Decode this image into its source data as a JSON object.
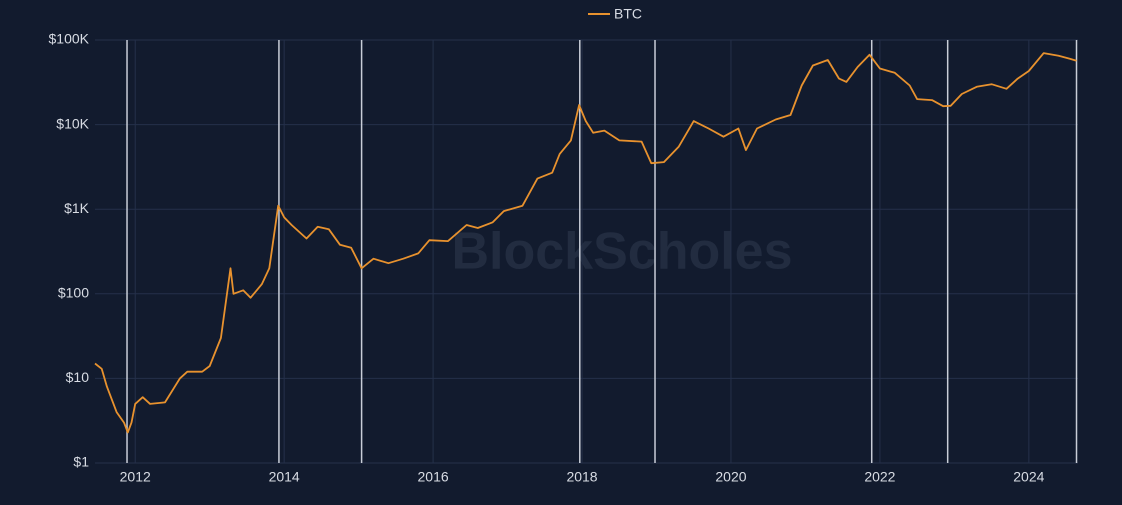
{
  "chart_data": {
    "type": "line",
    "watermark": "BlockScholes",
    "log_scale": true,
    "grid": true,
    "legend": "top",
    "x": [
      2011.46,
      2011.55,
      2011.62,
      2011.75,
      2011.85,
      2011.9,
      2011.95,
      2012.0,
      2012.1,
      2012.2,
      2012.4,
      2012.6,
      2012.7,
      2012.9,
      2013.0,
      2013.15,
      2013.28,
      2013.32,
      2013.45,
      2013.55,
      2013.7,
      2013.8,
      2013.92,
      2014.0,
      2014.1,
      2014.3,
      2014.45,
      2014.6,
      2014.75,
      2014.9,
      2015.04,
      2015.2,
      2015.4,
      2015.6,
      2015.8,
      2015.95,
      2016.2,
      2016.45,
      2016.6,
      2016.8,
      2016.95,
      2017.2,
      2017.4,
      2017.6,
      2017.7,
      2017.85,
      2017.96,
      2018.05,
      2018.15,
      2018.3,
      2018.5,
      2018.8,
      2018.93,
      2019.1,
      2019.3,
      2019.5,
      2019.7,
      2019.9,
      2020.1,
      2020.2,
      2020.35,
      2020.6,
      2020.8,
      2020.95,
      2021.1,
      2021.3,
      2021.45,
      2021.55,
      2021.7,
      2021.86,
      2022.0,
      2022.2,
      2022.4,
      2022.5,
      2022.7,
      2022.85,
      2022.95,
      2023.1,
      2023.3,
      2023.5,
      2023.7,
      2023.85,
      2024.0,
      2024.2,
      2024.4,
      2024.55,
      2024.64
    ],
    "series": [
      {
        "name": "BTC",
        "color": "#e8922e",
        "values": [
          15,
          13,
          8,
          4,
          3,
          2.3,
          3,
          5,
          6,
          5,
          5.2,
          10,
          12,
          12,
          14,
          30,
          200,
          100,
          110,
          90,
          130,
          200,
          1100,
          800,
          650,
          450,
          620,
          580,
          380,
          350,
          200,
          260,
          230,
          260,
          300,
          430,
          420,
          650,
          600,
          700,
          950,
          1100,
          2300,
          2700,
          4500,
          6500,
          17000,
          11000,
          8000,
          8500,
          6500,
          6300,
          3500,
          3600,
          5500,
          11000,
          9000,
          7200,
          9000,
          5000,
          9000,
          11500,
          13000,
          29000,
          50000,
          58000,
          35000,
          32000,
          48000,
          67000,
          46000,
          41000,
          29000,
          20000,
          19500,
          16500,
          16700,
          23000,
          28000,
          30000,
          26500,
          35000,
          43000,
          70000,
          65000,
          60000,
          57000
        ]
      }
    ],
    "vlines": [
      2011.89,
      2013.93,
      2015.04,
      2017.97,
      2018.98,
      2021.89,
      2022.91,
      2024.64
    ],
    "xlim": [
      2011.46,
      2024.66
    ],
    "xticks": [
      2012,
      2014,
      2016,
      2018,
      2020,
      2022,
      2024
    ],
    "ylim": [
      1,
      100000
    ],
    "yticks": [
      {
        "value": 1,
        "label": "$1"
      },
      {
        "value": 10,
        "label": "$10"
      },
      {
        "value": 100,
        "label": "$100"
      },
      {
        "value": 1000,
        "label": "$1K"
      },
      {
        "value": 10000,
        "label": "$10K"
      },
      {
        "value": 100000,
        "label": "$100K"
      }
    ]
  }
}
